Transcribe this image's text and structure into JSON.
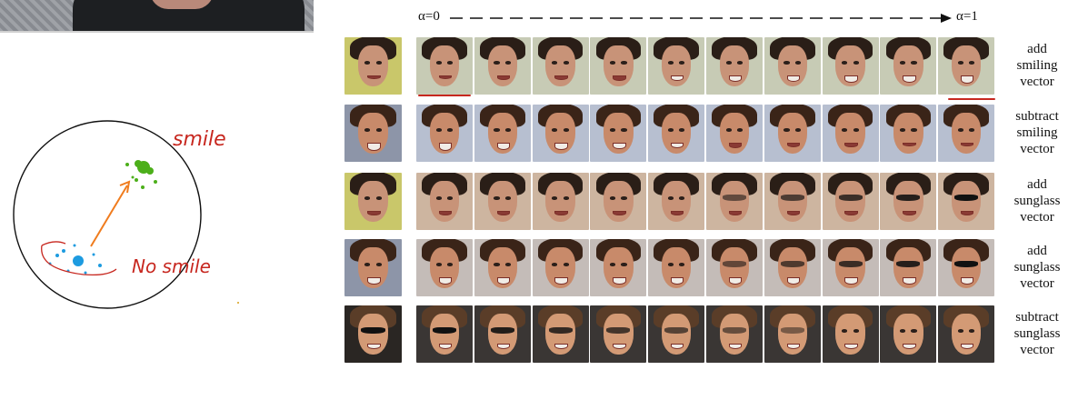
{
  "figure": {
    "alpha_start": "α=0",
    "alpha_end": "α=1",
    "rows": [
      {
        "label_lines": [
          "add",
          "smiling",
          "vector"
        ],
        "bg": "#c7cbb5",
        "hair": "#2a1e17",
        "skin": "#c89378",
        "glasses_start": 0,
        "glasses_end": 0,
        "smile_start": 0.2,
        "smile_end": 1,
        "source_bg": "#c9c76a"
      },
      {
        "label_lines": [
          "subtract",
          "smiling",
          "vector"
        ],
        "bg": "#b7bfd0",
        "hair": "#3a2418",
        "skin": "#c88a6a",
        "glasses_start": 0,
        "glasses_end": 0,
        "smile_start": 1,
        "smile_end": 0.1,
        "source_bg": "#8d95a8"
      },
      {
        "label_lines": [
          "add",
          "sunglass",
          "vector"
        ],
        "bg": "#cdb5a0",
        "hair": "#2a1e17",
        "skin": "#c89378",
        "glasses_start": 0,
        "glasses_end": 1,
        "smile_start": 0.3,
        "smile_end": 0.3,
        "source_bg": "#c9c76a"
      },
      {
        "label_lines": [
          "add",
          "sunglass",
          "vector"
        ],
        "bg": "#c4bcb8",
        "hair": "#3a2418",
        "skin": "#c88a6a",
        "glasses_start": 0,
        "glasses_end": 1,
        "smile_start": 0.8,
        "smile_end": 0.8,
        "source_bg": "#8d95a8"
      },
      {
        "label_lines": [
          "subtract",
          "sunglass",
          "vector"
        ],
        "bg": "#3a3634",
        "hair": "#5a3d28",
        "skin": "#d39a75",
        "glasses_start": 1,
        "glasses_end": 0.2,
        "smile_start": 0.6,
        "smile_end": 0.6,
        "source_bg": "#2a2623"
      }
    ]
  },
  "sketch": {
    "annotation_smile": "smile",
    "annotation_no_smile": "No smile",
    "smile_color": "#4caf1a",
    "no_smile_color": "#1d9be0",
    "arrow_color": "#f07c1e",
    "ink_color": "#c7271f"
  }
}
